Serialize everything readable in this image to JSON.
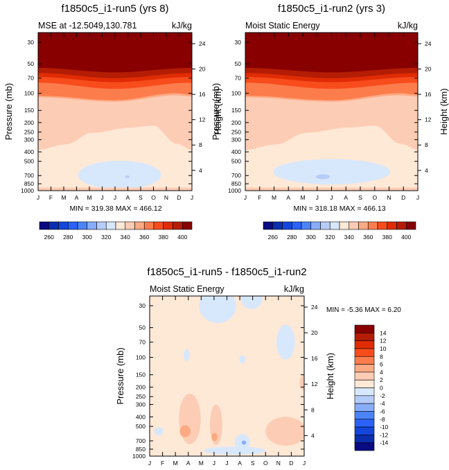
{
  "colors": [
    "#0a0a82",
    "#0a2eae",
    "#1446dc",
    "#2a62f8",
    "#4c84f8",
    "#88acf8",
    "#b6ccf8",
    "#d8e8fc",
    "#fee8d6",
    "#fdccb4",
    "#fcaa84",
    "#fc7c4c",
    "#f84c1c",
    "#e02c04",
    "#b41c04",
    "#880000"
  ],
  "chart_data": [
    {
      "type": "heatmap",
      "title": "f1850c5_i1-run5 (yrs 8)",
      "left_subtitle": "MSE at -12.5049,130.781",
      "right_subtitle": "kJ/kg",
      "ylabel": "Pressure (mb)",
      "ylabel_right": "Height (km)",
      "x_ticks": [
        "J",
        "F",
        "M",
        "A",
        "M",
        "J",
        "J",
        "A",
        "S",
        "O",
        "N",
        "D",
        "J"
      ],
      "y_ticks": [
        "30",
        "50",
        "70",
        "100",
        "150",
        "200",
        "250",
        "300",
        "400",
        "500",
        "700",
        "850",
        "1000"
      ],
      "y_right_ticks": [
        "24",
        "20",
        "16",
        "12",
        "8",
        "4"
      ],
      "stats": "MIN = 319.38 MAX = 466.12",
      "colorbar_labels": [
        "260",
        "280",
        "300",
        "320",
        "340",
        "360",
        "380",
        "400"
      ],
      "min": 319.38,
      "max": 466.12
    },
    {
      "type": "heatmap",
      "title": "f1850c5_i1-run2 (yrs 3)",
      "left_subtitle": "Moist Static Energy",
      "right_subtitle": "kJ/kg",
      "ylabel": "Pressure (mb)",
      "ylabel_right": "Height (km)",
      "x_ticks": [
        "J",
        "F",
        "M",
        "A",
        "M",
        "J",
        "J",
        "A",
        "S",
        "O",
        "N",
        "D",
        "J"
      ],
      "y_ticks": [
        "30",
        "50",
        "70",
        "100",
        "150",
        "200",
        "250",
        "300",
        "400",
        "500",
        "700",
        "850",
        "1000"
      ],
      "y_right_ticks": [
        "24",
        "20",
        "16",
        "12",
        "8",
        "4"
      ],
      "stats": "MIN = 318.18 MAX = 466.13",
      "colorbar_labels": [
        "260",
        "280",
        "300",
        "320",
        "340",
        "360",
        "380",
        "400"
      ],
      "min": 318.18,
      "max": 466.13
    },
    {
      "type": "heatmap",
      "title": "f1850c5_i1-run5 - f1850c5_i1-run2",
      "left_subtitle": "Moist Static Energy",
      "right_subtitle": "kJ/kg",
      "ylabel": "Pressure (mb)",
      "ylabel_right": "Height (km)",
      "x_ticks": [
        "J",
        "F",
        "M",
        "A",
        "M",
        "J",
        "J",
        "A",
        "S",
        "O",
        "N",
        "D",
        "J"
      ],
      "y_ticks": [
        "30",
        "50",
        "70",
        "100",
        "150",
        "200",
        "250",
        "300",
        "400",
        "500",
        "700",
        "850",
        "1000"
      ],
      "y_right_ticks": [
        "24",
        "20",
        "16",
        "12",
        "8",
        "4"
      ],
      "stats": "MIN =  -5.36 MAX =   6.20",
      "colorbar_labels": [
        "14",
        "12",
        "10",
        "8",
        "6",
        "4",
        "2",
        "0",
        "-2",
        "-4",
        "-6",
        "-8",
        "-10",
        "-12",
        "-14"
      ],
      "min": -5.36,
      "max": 6.2
    }
  ]
}
